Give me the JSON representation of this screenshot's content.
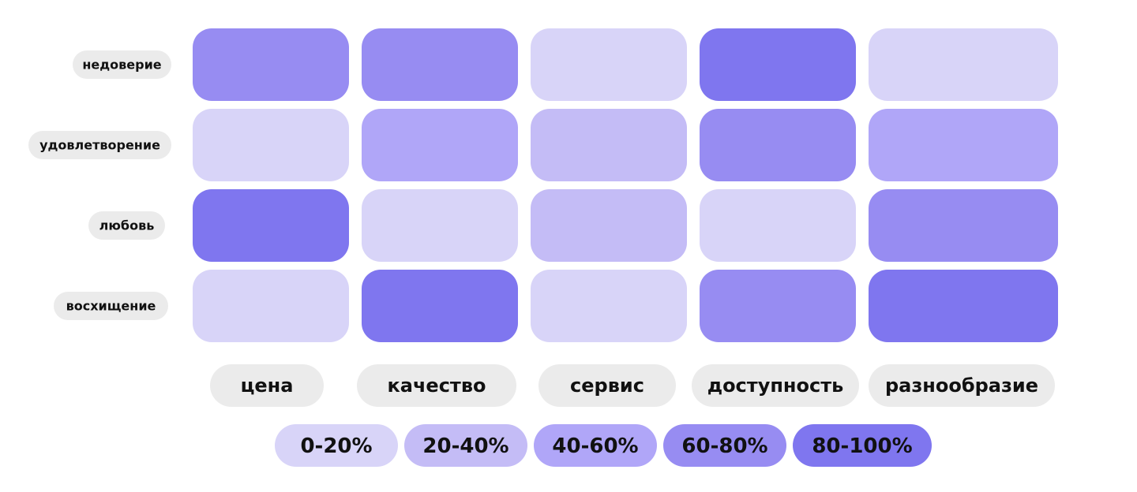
{
  "chart_data": {
    "type": "heatmap",
    "rows": [
      "недоверие",
      "удовлетворение",
      "любовь",
      "восхищение"
    ],
    "columns": [
      "цена",
      "качество",
      "сервис",
      "доступность",
      "разнообразие"
    ],
    "values": [
      [
        70,
        70,
        10,
        90,
        10
      ],
      [
        10,
        50,
        30,
        70,
        50
      ],
      [
        90,
        10,
        30,
        10,
        70
      ],
      [
        10,
        90,
        10,
        70,
        90
      ]
    ],
    "color_bins": [
      0,
      20,
      40,
      60,
      80,
      100
    ],
    "bin_labels": [
      "0-20%",
      "20-40%",
      "40-60%",
      "60-80%",
      "80-100%"
    ],
    "colors": [
      "#d8d4f8",
      "#c4bcf6",
      "#b0a6f8",
      "#978cf2",
      "#7f76ef"
    ]
  }
}
